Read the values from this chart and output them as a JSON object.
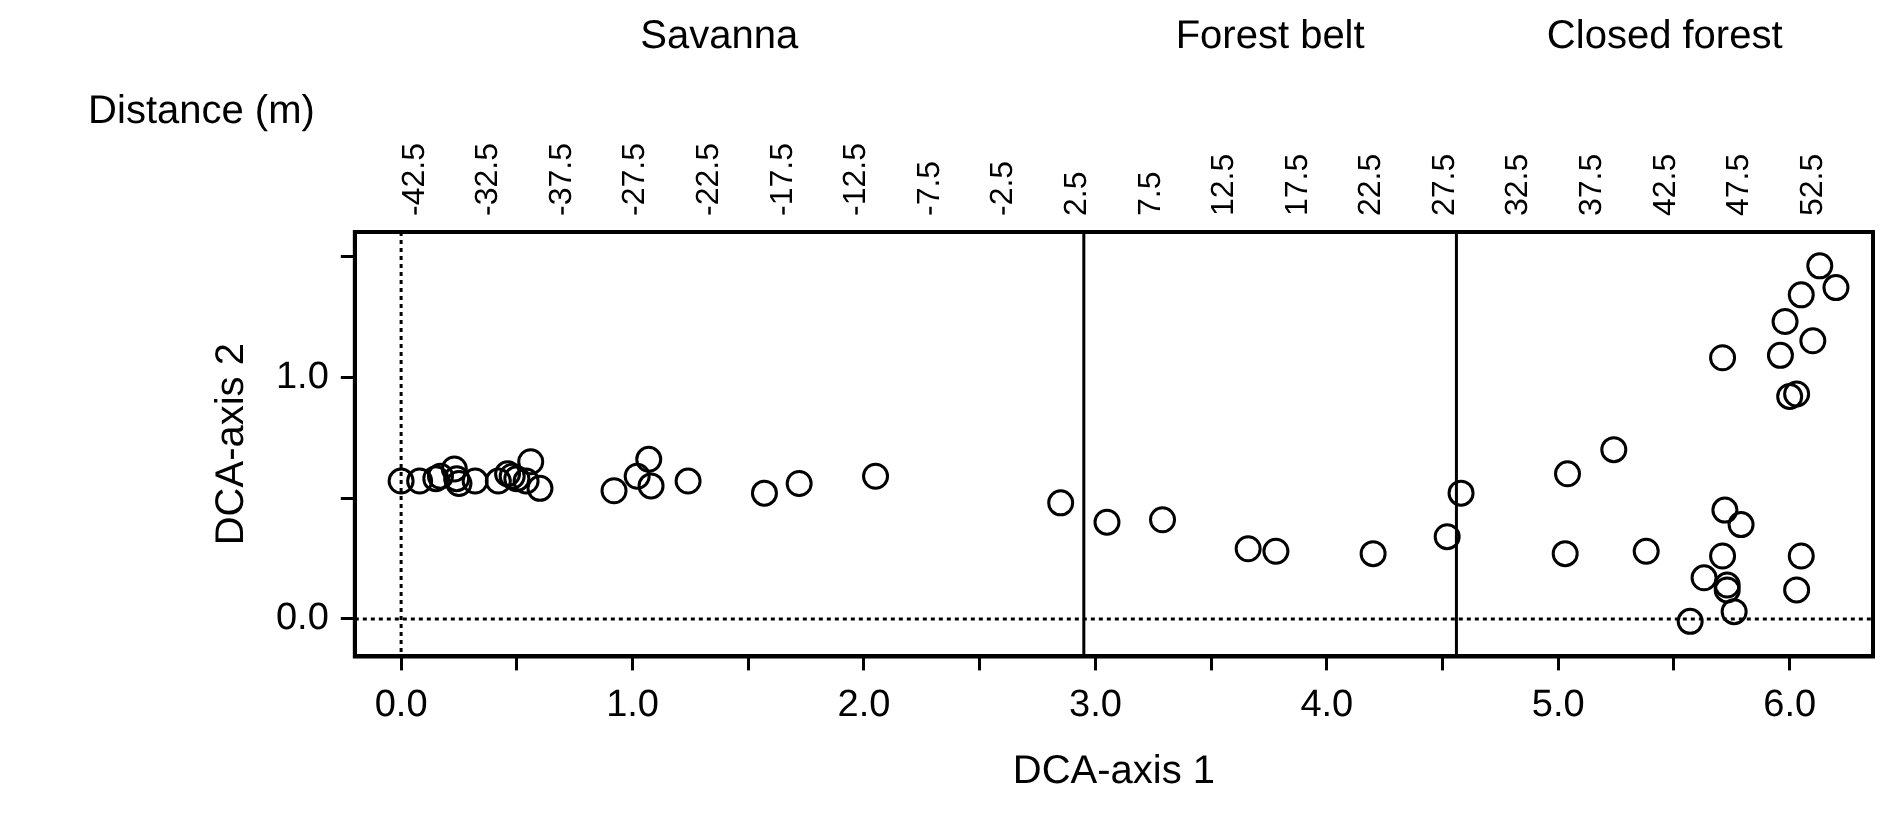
{
  "chart_data": {
    "type": "scatter",
    "xlabel": "DCA-axis 1",
    "ylabel": "DCA-axis 2",
    "x2label": "Distance (m)",
    "marker": "circle",
    "grid": false,
    "legend": false,
    "xlim": [
      -0.2,
      6.36
    ],
    "ylim": [
      -0.155,
      1.6
    ],
    "xticks": [
      {
        "value": 0,
        "label": "0.0"
      },
      {
        "value": 0.5,
        "label": null
      },
      {
        "value": 1,
        "label": "1.0"
      },
      {
        "value": 1.5,
        "label": null
      },
      {
        "value": 2,
        "label": "2.0"
      },
      {
        "value": 2.5,
        "label": null
      },
      {
        "value": 3,
        "label": "3.0"
      },
      {
        "value": 3.5,
        "label": null
      },
      {
        "value": 4,
        "label": "4.0"
      },
      {
        "value": 4.5,
        "label": null
      },
      {
        "value": 5,
        "label": "5.0"
      },
      {
        "value": 5.5,
        "label": null
      },
      {
        "value": 6,
        "label": "6.0"
      }
    ],
    "yticks": [
      {
        "value": 0,
        "label": "0.0"
      },
      {
        "value": 0.5,
        "label": null
      },
      {
        "value": 1,
        "label": "1.0"
      },
      {
        "value": 1.5,
        "label": null
      }
    ],
    "x": [
      0.0,
      0.08,
      0.15,
      0.17,
      0.23,
      0.24,
      0.25,
      0.32,
      0.42,
      0.46,
      0.48,
      0.5,
      0.54,
      0.56,
      0.6,
      0.92,
      1.02,
      1.07,
      1.08,
      1.24,
      1.57,
      1.72,
      2.05,
      2.85,
      3.05,
      3.29,
      3.66,
      3.78,
      4.2,
      4.52,
      4.58,
      5.04,
      5.03,
      5.24,
      5.38,
      5.57,
      5.63,
      5.71,
      5.71,
      5.72,
      5.73,
      5.73,
      5.76,
      5.79,
      5.96,
      5.98,
      6.0,
      6.03,
      6.03,
      6.05,
      6.05,
      6.1,
      6.13,
      6.2
    ],
    "values": [
      0.57,
      0.57,
      0.58,
      0.59,
      0.62,
      0.58,
      0.56,
      0.57,
      0.57,
      0.6,
      0.59,
      0.58,
      0.57,
      0.65,
      0.54,
      0.53,
      0.59,
      0.66,
      0.55,
      0.57,
      0.52,
      0.56,
      0.59,
      0.48,
      0.4,
      0.41,
      0.29,
      0.28,
      0.27,
      0.34,
      0.52,
      0.6,
      0.27,
      0.7,
      0.28,
      -0.01,
      0.17,
      0.26,
      1.08,
      0.45,
      0.14,
      0.12,
      0.03,
      0.39,
      1.09,
      1.23,
      0.92,
      0.93,
      0.12,
      0.26,
      1.34,
      1.15,
      1.46,
      1.37
    ],
    "color": "#000000",
    "ref_lines": [
      {
        "axis": "x",
        "value": 0,
        "line_style": "dotted"
      },
      {
        "axis": "y",
        "value": 0,
        "line_style": "dotted"
      },
      {
        "axis": "x",
        "value": 2.95,
        "line_style": "solid"
      },
      {
        "axis": "x",
        "value": 4.56,
        "line_style": "solid"
      }
    ],
    "annotations": [
      "Savanna",
      "Forest belt",
      "Closed forest",
      "-42.5",
      "-32.5",
      "-37.5",
      "-27.5",
      "-22.5",
      "-17.5",
      "-12.5",
      "-7.5",
      "-2.5",
      "2.5",
      "7.5",
      "12.5",
      "17.5",
      "22.5",
      "27.5",
      "32.5",
      "37.5",
      "42.5",
      "47.5",
      "52.5"
    ]
  }
}
